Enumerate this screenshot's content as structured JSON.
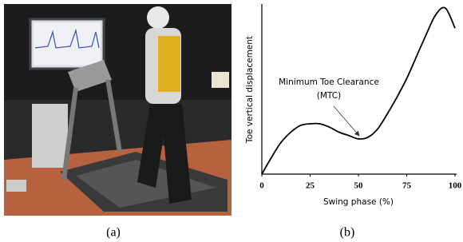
{
  "chart_data": {
    "type": "line",
    "xlabel": "Swing phase (%)",
    "ylabel": "Toe vertical displacement",
    "annotations": [
      "Minimum Toe Clearance",
      "(MTC)"
    ],
    "x": [
      0,
      5,
      10,
      15,
      20,
      25,
      30,
      35,
      40,
      45,
      50,
      55,
      60,
      65,
      70,
      75,
      80,
      85,
      90,
      95,
      100
    ],
    "values": [
      0,
      10,
      19,
      25,
      29,
      30,
      30,
      28,
      25,
      23,
      21,
      22,
      27,
      36,
      46,
      57,
      70,
      83,
      95,
      99,
      87
    ],
    "color": "#000000",
    "xlim": [
      0,
      100
    ],
    "xticks": [
      0,
      25,
      50,
      75,
      100
    ],
    "ylim": [
      0,
      100
    ]
  },
  "captions": [
    "(a)",
    "(b)"
  ]
}
